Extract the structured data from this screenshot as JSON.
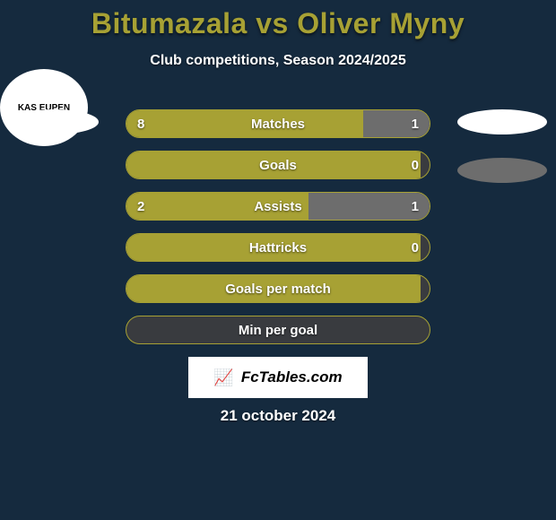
{
  "background_color": "#152a3e",
  "title": {
    "text": "Bitumazala vs Oliver Myny",
    "color": "#a7a134",
    "fontsize": 32
  },
  "subtitle": {
    "text": "Club competitions, Season 2024/2025",
    "color": "#ffffff",
    "fontsize": 16
  },
  "logos": {
    "left1_bg": "#ffffff",
    "left2_bg": "#ffffff",
    "left2_text": "KAS EUPEN",
    "right1_bg": "#ffffff",
    "right2_bg": "#6d6d6d"
  },
  "bars": {
    "track_color": "#393b3f",
    "left_color": "#a7a134",
    "right_color": "#6d6d6d",
    "text_color": "#ffffff",
    "metric_color": "#ffffff",
    "height": 32,
    "radius": 16,
    "rows": [
      {
        "metric": "Matches",
        "left_val": "8",
        "right_val": "1",
        "left_pct": 78,
        "right_pct": 22
      },
      {
        "metric": "Goals",
        "left_val": "",
        "right_val": "0",
        "left_pct": 97,
        "right_pct": 0
      },
      {
        "metric": "Assists",
        "left_val": "2",
        "right_val": "1",
        "left_pct": 60,
        "right_pct": 40
      },
      {
        "metric": "Hattricks",
        "left_val": "",
        "right_val": "0",
        "left_pct": 97,
        "right_pct": 0
      },
      {
        "metric": "Goals per match",
        "left_val": "",
        "right_val": "",
        "left_pct": 97,
        "right_pct": 0
      },
      {
        "metric": "Min per goal",
        "left_val": "",
        "right_val": "",
        "left_pct": 0,
        "right_pct": 0
      }
    ]
  },
  "branding": {
    "text": "FcTables.com",
    "bg": "#ffffff",
    "color": "#000000"
  },
  "date": {
    "text": "21 october 2024",
    "color": "#ffffff"
  }
}
